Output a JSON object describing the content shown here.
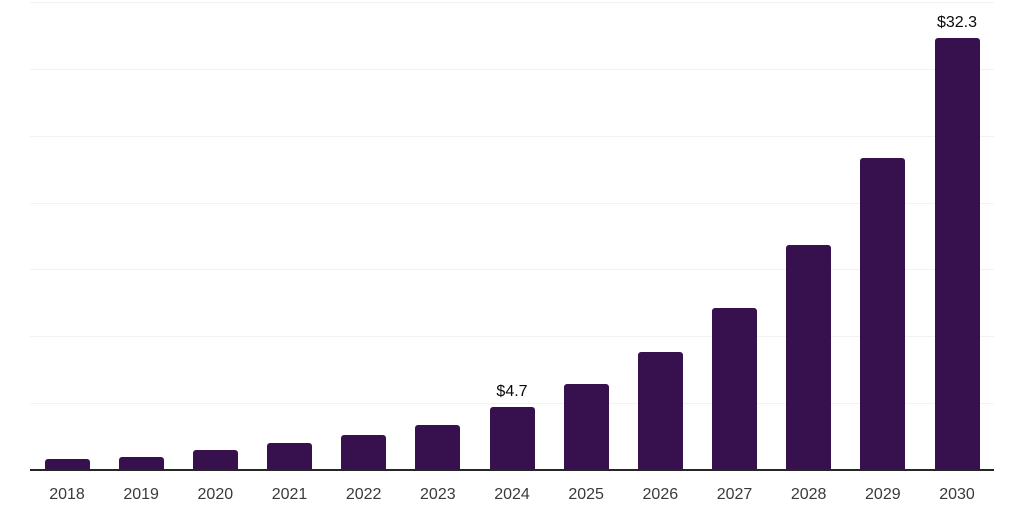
{
  "chart_data": {
    "type": "bar",
    "title": "",
    "xlabel": "",
    "ylabel": "",
    "categories": [
      "2018",
      "2019",
      "2020",
      "2021",
      "2022",
      "2023",
      "2024",
      "2025",
      "2026",
      "2027",
      "2028",
      "2029",
      "2030"
    ],
    "values": [
      0.8,
      1.0,
      1.5,
      2.0,
      2.6,
      3.4,
      4.7,
      6.4,
      8.8,
      12.1,
      16.8,
      23.3,
      32.3
    ],
    "value_labels": [
      {
        "category": "2024",
        "text": "$4.7"
      },
      {
        "category": "2030",
        "text": "$32.3"
      }
    ],
    "ylim": [
      0,
      35
    ],
    "gridline_step": 5,
    "grid": true,
    "y_tick_labels_visible": false,
    "legend": false
  },
  "style": {
    "bar_color": "#36114D",
    "grid_color": "#F2F2F2",
    "axis_line_color": "#262626",
    "tick_label_color": "#3A3A3A",
    "value_label_color": "#0A0A0A",
    "background_color": "#FFFFFF"
  }
}
